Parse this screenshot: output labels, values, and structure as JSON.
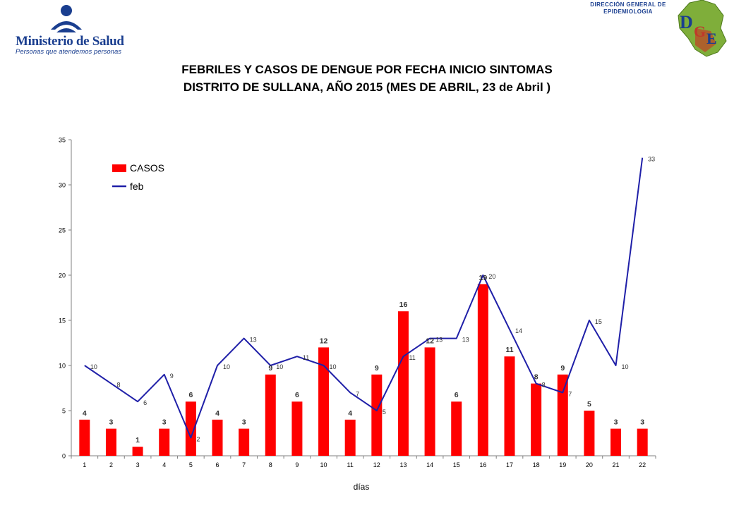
{
  "header": {
    "logo_name": "Ministerio de Salud",
    "logo_tagline": "Personas que atendemos personas",
    "org_line1": "DIRECCIÓN GENERAL DE",
    "org_line2": "EPIDEMIOLOGIA",
    "org_logo_letters": [
      "D",
      "G",
      "E"
    ]
  },
  "colors": {
    "bars": "#ff0000",
    "line": "#1f1fa8",
    "brand": "#1a3e8f"
  },
  "chart_data": {
    "type": "bar",
    "title": "FEBRILES Y CASOS DE DENGUE POR FECHA INICIO SINTOMAS",
    "subtitle": "DISTRITO DE SULLANA, AÑO 2015 (MES DE ABRIL, 23 de Abril )",
    "xlabel": "días",
    "ylabel": "",
    "ylim": [
      0,
      35
    ],
    "yticks": [
      0,
      5,
      10,
      15,
      20,
      25,
      30,
      35
    ],
    "grid": false,
    "legend_position": "top-left",
    "categories": [
      "1",
      "2",
      "3",
      "4",
      "5",
      "6",
      "7",
      "8",
      "9",
      "10",
      "11",
      "12",
      "13",
      "14",
      "15",
      "16",
      "17",
      "18",
      "19",
      "20",
      "21",
      "22"
    ],
    "series": [
      {
        "name": "CASOS",
        "type": "bar",
        "values": [
          4,
          3,
          1,
          3,
          6,
          4,
          3,
          9,
          6,
          12,
          4,
          9,
          16,
          12,
          6,
          19,
          11,
          8,
          9,
          5,
          3,
          3
        ]
      },
      {
        "name": "feb",
        "type": "line",
        "values": [
          10,
          8,
          6,
          9,
          2,
          10,
          13,
          10,
          11,
          10,
          7,
          5,
          11,
          13,
          13,
          20,
          14,
          8,
          7,
          15,
          10,
          33
        ]
      }
    ]
  }
}
